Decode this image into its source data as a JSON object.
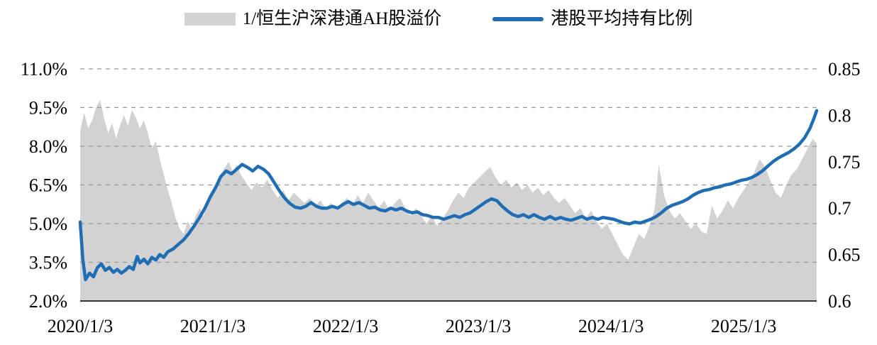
{
  "legend": {
    "items": [
      {
        "label": "1/恒生沪深港通AH股溢价",
        "type": "area",
        "color": "#d2d2d2"
      },
      {
        "label": "港股平均持有比例",
        "type": "line",
        "color": "#1f6eb5"
      }
    ]
  },
  "chart_data": {
    "type": "combo",
    "title": "",
    "x_axis": {
      "unit": "years_from_2020_01",
      "min": 0,
      "max": 5.55,
      "ticks": [
        {
          "x": 0,
          "label": "2020/1/3"
        },
        {
          "x": 1,
          "label": "2021/1/3"
        },
        {
          "x": 2,
          "label": "2022/1/3"
        },
        {
          "x": 3,
          "label": "2023/1/3"
        },
        {
          "x": 4,
          "label": "2024/1/3"
        },
        {
          "x": 5,
          "label": "2025/1/3"
        }
      ]
    },
    "left_axis": {
      "min": 2.0,
      "max": 11.0,
      "tick_values": [
        11.0,
        9.5,
        8.0,
        6.5,
        5.0,
        3.5,
        2.0
      ],
      "tick_labels": [
        "11.0%",
        "9.5%",
        "8.0%",
        "6.5%",
        "5.0%",
        "3.5%",
        "2.0%"
      ]
    },
    "right_axis": {
      "min": 0.6,
      "max": 0.85,
      "tick_values": [
        0.85,
        0.8,
        0.75,
        0.7,
        0.65,
        0.6
      ],
      "tick_labels": [
        "0.85",
        "0.8",
        "0.75",
        "0.7",
        "0.65",
        "0.6"
      ]
    },
    "grid": {
      "style": "dashed",
      "color": "#999999",
      "axis_color": "#1a1a1a"
    },
    "series": [
      {
        "name": "1/恒生沪深港通AH股溢价",
        "type": "area",
        "axis": "left",
        "color": "#d2d2d2",
        "points": [
          [
            0.0,
            8.6
          ],
          [
            0.03,
            9.3
          ],
          [
            0.06,
            8.7
          ],
          [
            0.09,
            9.0
          ],
          [
            0.12,
            9.5
          ],
          [
            0.15,
            9.8
          ],
          [
            0.18,
            9.1
          ],
          [
            0.21,
            8.5
          ],
          [
            0.24,
            8.9
          ],
          [
            0.27,
            8.3
          ],
          [
            0.3,
            8.8
          ],
          [
            0.33,
            9.2
          ],
          [
            0.36,
            8.8
          ],
          [
            0.39,
            9.4
          ],
          [
            0.42,
            9.1
          ],
          [
            0.45,
            8.7
          ],
          [
            0.48,
            9.0
          ],
          [
            0.51,
            8.5
          ],
          [
            0.54,
            7.9
          ],
          [
            0.57,
            8.2
          ],
          [
            0.6,
            7.5
          ],
          [
            0.63,
            6.9
          ],
          [
            0.66,
            6.3
          ],
          [
            0.69,
            5.8
          ],
          [
            0.72,
            5.2
          ],
          [
            0.75,
            4.8
          ],
          [
            0.78,
            4.6
          ],
          [
            0.81,
            5.1
          ],
          [
            0.84,
            4.8
          ],
          [
            0.87,
            5.3
          ],
          [
            0.9,
            5.6
          ],
          [
            0.93,
            5.3
          ],
          [
            0.96,
            5.8
          ],
          [
            1.0,
            6.1
          ],
          [
            1.04,
            6.7
          ],
          [
            1.08,
            7.1
          ],
          [
            1.12,
            7.4
          ],
          [
            1.15,
            7.0
          ],
          [
            1.18,
            7.3
          ],
          [
            1.21,
            6.9
          ],
          [
            1.25,
            6.6
          ],
          [
            1.29,
            6.3
          ],
          [
            1.33,
            6.6
          ],
          [
            1.37,
            6.4
          ],
          [
            1.41,
            6.7
          ],
          [
            1.45,
            6.3
          ],
          [
            1.49,
            6.0
          ],
          [
            1.53,
            6.3
          ],
          [
            1.57,
            5.9
          ],
          [
            1.61,
            6.2
          ],
          [
            1.65,
            6.0
          ],
          [
            1.69,
            5.8
          ],
          [
            1.73,
            6.0
          ],
          [
            1.77,
            5.7
          ],
          [
            1.81,
            5.9
          ],
          [
            1.85,
            5.6
          ],
          [
            1.89,
            5.8
          ],
          [
            1.93,
            5.5
          ],
          [
            1.97,
            5.8
          ],
          [
            2.01,
            6.0
          ],
          [
            2.05,
            5.7
          ],
          [
            2.09,
            6.1
          ],
          [
            2.13,
            5.8
          ],
          [
            2.17,
            6.2
          ],
          [
            2.21,
            5.9
          ],
          [
            2.25,
            5.6
          ],
          [
            2.29,
            5.9
          ],
          [
            2.33,
            5.5
          ],
          [
            2.37,
            5.8
          ],
          [
            2.41,
            6.0
          ],
          [
            2.45,
            5.6
          ],
          [
            2.49,
            5.3
          ],
          [
            2.53,
            5.6
          ],
          [
            2.57,
            5.3
          ],
          [
            2.61,
            5.0
          ],
          [
            2.65,
            5.3
          ],
          [
            2.69,
            4.9
          ],
          [
            2.73,
            5.2
          ],
          [
            2.77,
            5.5
          ],
          [
            2.81,
            5.9
          ],
          [
            2.85,
            6.2
          ],
          [
            2.89,
            6.0
          ],
          [
            2.93,
            6.4
          ],
          [
            2.97,
            6.6
          ],
          [
            3.01,
            6.8
          ],
          [
            3.05,
            7.0
          ],
          [
            3.09,
            7.2
          ],
          [
            3.13,
            6.8
          ],
          [
            3.17,
            6.5
          ],
          [
            3.21,
            6.7
          ],
          [
            3.25,
            6.4
          ],
          [
            3.29,
            6.6
          ],
          [
            3.33,
            6.3
          ],
          [
            3.37,
            6.5
          ],
          [
            3.41,
            6.2
          ],
          [
            3.45,
            6.4
          ],
          [
            3.49,
            6.1
          ],
          [
            3.53,
            6.3
          ],
          [
            3.57,
            6.0
          ],
          [
            3.61,
            5.8
          ],
          [
            3.65,
            6.0
          ],
          [
            3.69,
            5.7
          ],
          [
            3.73,
            5.4
          ],
          [
            3.77,
            5.6
          ],
          [
            3.81,
            5.2
          ],
          [
            3.85,
            5.5
          ],
          [
            3.89,
            5.1
          ],
          [
            3.93,
            4.8
          ],
          [
            3.97,
            5.0
          ],
          [
            4.01,
            4.6
          ],
          [
            4.05,
            4.2
          ],
          [
            4.09,
            3.8
          ],
          [
            4.13,
            3.6
          ],
          [
            4.17,
            4.1
          ],
          [
            4.21,
            4.6
          ],
          [
            4.25,
            4.4
          ],
          [
            4.29,
            4.9
          ],
          [
            4.33,
            5.6
          ],
          [
            4.36,
            7.3
          ],
          [
            4.4,
            6.1
          ],
          [
            4.44,
            5.5
          ],
          [
            4.48,
            5.2
          ],
          [
            4.52,
            5.4
          ],
          [
            4.56,
            5.1
          ],
          [
            4.6,
            4.8
          ],
          [
            4.64,
            5.0
          ],
          [
            4.68,
            4.7
          ],
          [
            4.72,
            4.6
          ],
          [
            4.76,
            5.7
          ],
          [
            4.8,
            5.2
          ],
          [
            4.84,
            5.5
          ],
          [
            4.88,
            5.9
          ],
          [
            4.92,
            5.6
          ],
          [
            4.96,
            6.0
          ],
          [
            5.0,
            6.3
          ],
          [
            5.04,
            6.6
          ],
          [
            5.08,
            7.0
          ],
          [
            5.12,
            7.5
          ],
          [
            5.16,
            7.2
          ],
          [
            5.2,
            6.7
          ],
          [
            5.24,
            6.2
          ],
          [
            5.28,
            6.0
          ],
          [
            5.32,
            6.5
          ],
          [
            5.36,
            6.9
          ],
          [
            5.4,
            7.1
          ],
          [
            5.44,
            7.5
          ],
          [
            5.48,
            7.9
          ],
          [
            5.52,
            8.3
          ],
          [
            5.55,
            8.1
          ]
        ]
      },
      {
        "name": "港股平均持有比例",
        "type": "line",
        "axis": "right",
        "color": "#1f6eb5",
        "stroke_width": 4.5,
        "points": [
          [
            0.0,
            0.685
          ],
          [
            0.02,
            0.645
          ],
          [
            0.04,
            0.623
          ],
          [
            0.07,
            0.63
          ],
          [
            0.1,
            0.626
          ],
          [
            0.13,
            0.636
          ],
          [
            0.16,
            0.64
          ],
          [
            0.19,
            0.633
          ],
          [
            0.22,
            0.636
          ],
          [
            0.25,
            0.631
          ],
          [
            0.28,
            0.634
          ],
          [
            0.31,
            0.63
          ],
          [
            0.34,
            0.633
          ],
          [
            0.37,
            0.637
          ],
          [
            0.4,
            0.634
          ],
          [
            0.43,
            0.648
          ],
          [
            0.45,
            0.641
          ],
          [
            0.48,
            0.645
          ],
          [
            0.51,
            0.64
          ],
          [
            0.54,
            0.647
          ],
          [
            0.57,
            0.644
          ],
          [
            0.6,
            0.65
          ],
          [
            0.63,
            0.647
          ],
          [
            0.66,
            0.653
          ],
          [
            0.7,
            0.656
          ],
          [
            0.74,
            0.661
          ],
          [
            0.78,
            0.666
          ],
          [
            0.82,
            0.673
          ],
          [
            0.86,
            0.681
          ],
          [
            0.9,
            0.69
          ],
          [
            0.94,
            0.7
          ],
          [
            0.98,
            0.712
          ],
          [
            1.02,
            0.722
          ],
          [
            1.06,
            0.734
          ],
          [
            1.1,
            0.74
          ],
          [
            1.14,
            0.737
          ],
          [
            1.18,
            0.742
          ],
          [
            1.22,
            0.747
          ],
          [
            1.26,
            0.744
          ],
          [
            1.3,
            0.74
          ],
          [
            1.34,
            0.745
          ],
          [
            1.38,
            0.742
          ],
          [
            1.42,
            0.737
          ],
          [
            1.46,
            0.728
          ],
          [
            1.5,
            0.719
          ],
          [
            1.54,
            0.711
          ],
          [
            1.58,
            0.705
          ],
          [
            1.62,
            0.701
          ],
          [
            1.66,
            0.7
          ],
          [
            1.7,
            0.702
          ],
          [
            1.74,
            0.706
          ],
          [
            1.78,
            0.702
          ],
          [
            1.82,
            0.7
          ],
          [
            1.86,
            0.7
          ],
          [
            1.9,
            0.702
          ],
          [
            1.94,
            0.7
          ],
          [
            1.98,
            0.704
          ],
          [
            2.02,
            0.707
          ],
          [
            2.06,
            0.704
          ],
          [
            2.1,
            0.706
          ],
          [
            2.14,
            0.703
          ],
          [
            2.18,
            0.7
          ],
          [
            2.22,
            0.701
          ],
          [
            2.26,
            0.698
          ],
          [
            2.3,
            0.697
          ],
          [
            2.34,
            0.7
          ],
          [
            2.38,
            0.698
          ],
          [
            2.42,
            0.7
          ],
          [
            2.46,
            0.697
          ],
          [
            2.5,
            0.695
          ],
          [
            2.54,
            0.696
          ],
          [
            2.58,
            0.693
          ],
          [
            2.62,
            0.692
          ],
          [
            2.66,
            0.69
          ],
          [
            2.7,
            0.69
          ],
          [
            2.74,
            0.688
          ],
          [
            2.78,
            0.69
          ],
          [
            2.82,
            0.692
          ],
          [
            2.86,
            0.69
          ],
          [
            2.9,
            0.693
          ],
          [
            2.94,
            0.695
          ],
          [
            2.98,
            0.699
          ],
          [
            3.02,
            0.703
          ],
          [
            3.06,
            0.707
          ],
          [
            3.1,
            0.71
          ],
          [
            3.14,
            0.708
          ],
          [
            3.18,
            0.702
          ],
          [
            3.22,
            0.697
          ],
          [
            3.26,
            0.693
          ],
          [
            3.3,
            0.691
          ],
          [
            3.34,
            0.693
          ],
          [
            3.38,
            0.69
          ],
          [
            3.42,
            0.693
          ],
          [
            3.46,
            0.69
          ],
          [
            3.5,
            0.688
          ],
          [
            3.54,
            0.691
          ],
          [
            3.58,
            0.688
          ],
          [
            3.62,
            0.69
          ],
          [
            3.66,
            0.688
          ],
          [
            3.7,
            0.687
          ],
          [
            3.74,
            0.689
          ],
          [
            3.78,
            0.691
          ],
          [
            3.82,
            0.688
          ],
          [
            3.86,
            0.69
          ],
          [
            3.9,
            0.688
          ],
          [
            3.94,
            0.69
          ],
          [
            3.98,
            0.689
          ],
          [
            4.02,
            0.688
          ],
          [
            4.06,
            0.686
          ],
          [
            4.1,
            0.684
          ],
          [
            4.14,
            0.683
          ],
          [
            4.18,
            0.685
          ],
          [
            4.22,
            0.684
          ],
          [
            4.26,
            0.686
          ],
          [
            4.3,
            0.688
          ],
          [
            4.34,
            0.691
          ],
          [
            4.38,
            0.695
          ],
          [
            4.42,
            0.7
          ],
          [
            4.46,
            0.703
          ],
          [
            4.5,
            0.705
          ],
          [
            4.54,
            0.707
          ],
          [
            4.58,
            0.71
          ],
          [
            4.62,
            0.714
          ],
          [
            4.66,
            0.717
          ],
          [
            4.7,
            0.719
          ],
          [
            4.74,
            0.72
          ],
          [
            4.78,
            0.722
          ],
          [
            4.82,
            0.723
          ],
          [
            4.86,
            0.725
          ],
          [
            4.9,
            0.726
          ],
          [
            4.94,
            0.728
          ],
          [
            4.98,
            0.73
          ],
          [
            5.02,
            0.731
          ],
          [
            5.06,
            0.733
          ],
          [
            5.1,
            0.736
          ],
          [
            5.14,
            0.74
          ],
          [
            5.18,
            0.745
          ],
          [
            5.22,
            0.75
          ],
          [
            5.26,
            0.754
          ],
          [
            5.3,
            0.757
          ],
          [
            5.34,
            0.76
          ],
          [
            5.38,
            0.764
          ],
          [
            5.42,
            0.769
          ],
          [
            5.46,
            0.776
          ],
          [
            5.5,
            0.786
          ],
          [
            5.53,
            0.797
          ],
          [
            5.55,
            0.805
          ]
        ]
      }
    ]
  }
}
